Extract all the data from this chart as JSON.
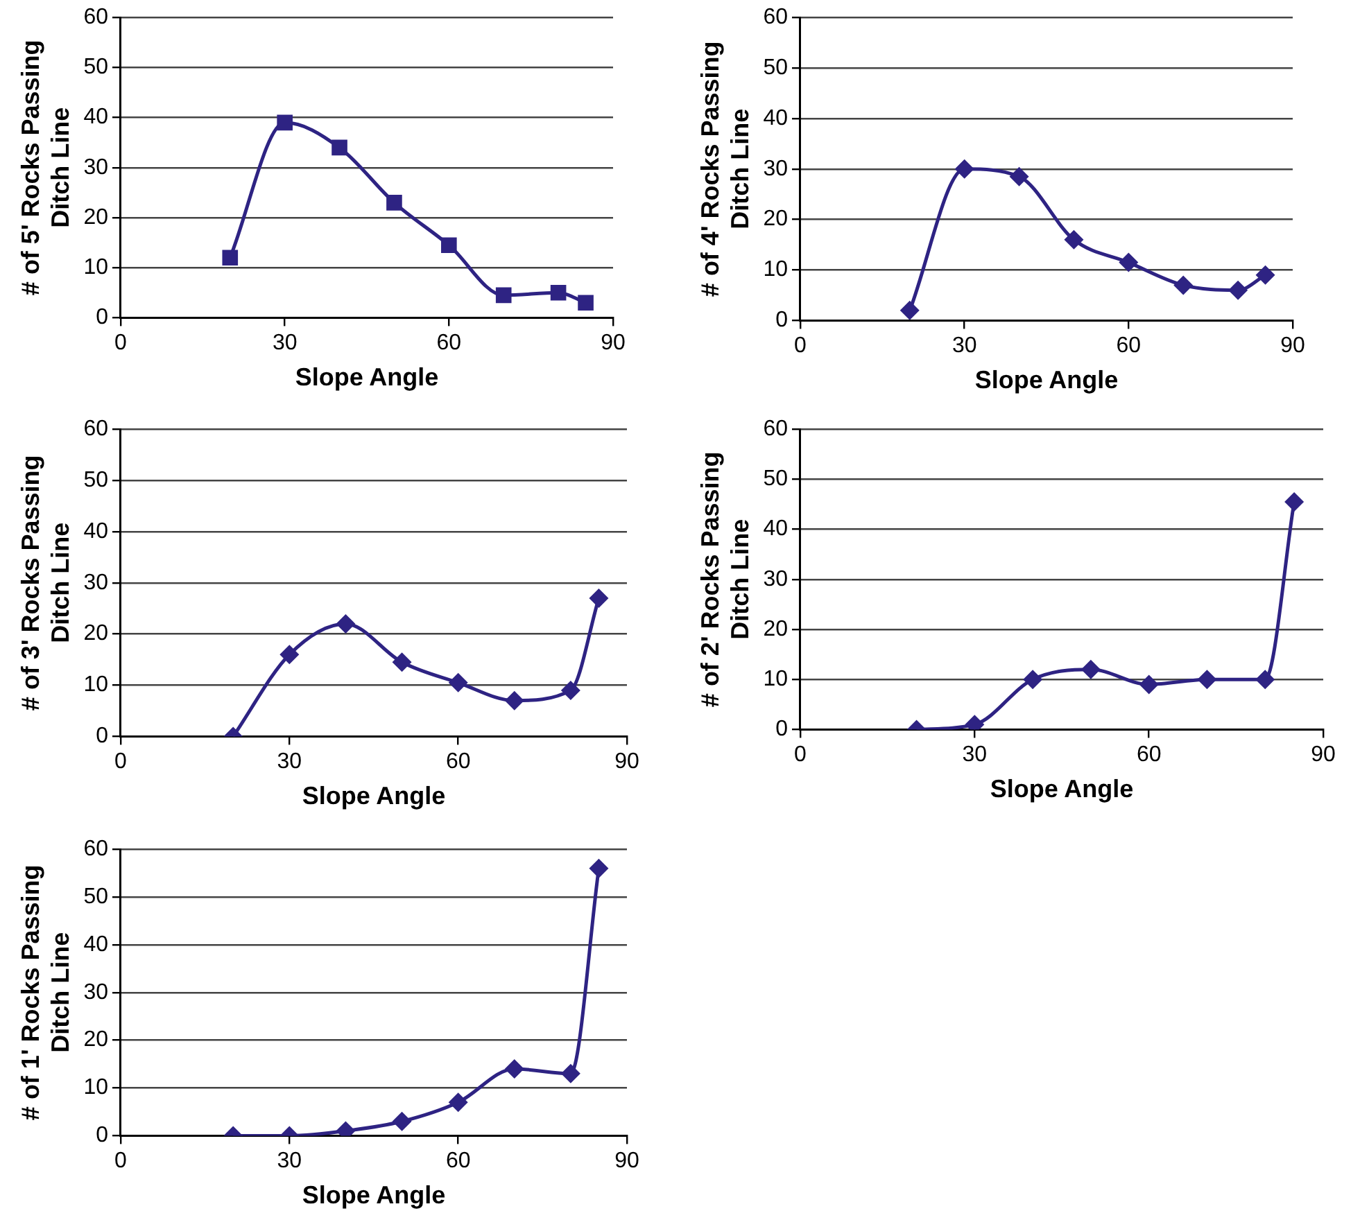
{
  "chart_data": [
    {
      "type": "line",
      "xlabel": "Slope Angle",
      "ylabel": "# of 5' Rocks Passing\nDitch Line",
      "x": [
        20,
        30,
        40,
        50,
        60,
        70,
        80,
        85
      ],
      "series": [
        {
          "color": "#2e2383",
          "values": [
            12,
            39,
            34,
            23,
            14.5,
            4.5,
            5,
            3
          ]
        }
      ],
      "xlim": [
        0,
        90
      ],
      "xticks": [
        0,
        30,
        60,
        90
      ],
      "ylim": [
        0,
        60
      ],
      "yticks": [
        0,
        10,
        20,
        30,
        40,
        50,
        60
      ],
      "grid": "y",
      "legend": false,
      "marker": "square",
      "line_style": "solid"
    },
    {
      "type": "line",
      "xlabel": "Slope Angle",
      "ylabel": "# of 4' Rocks Passing\nDitch Line",
      "x": [
        20,
        30,
        40,
        50,
        60,
        70,
        80,
        85
      ],
      "series": [
        {
          "color": "#2e2383",
          "values": [
            2,
            30,
            28.5,
            16,
            11.5,
            7,
            6,
            9
          ]
        }
      ],
      "xlim": [
        0,
        90
      ],
      "xticks": [
        0,
        30,
        60,
        90
      ],
      "ylim": [
        0,
        60
      ],
      "yticks": [
        0,
        10,
        20,
        30,
        40,
        50,
        60
      ],
      "grid": "y",
      "legend": false,
      "marker": "diamond",
      "line_style": "solid"
    },
    {
      "type": "line",
      "xlabel": "Slope Angle",
      "ylabel": "# of 3' Rocks Passing\nDitch Line",
      "x": [
        20,
        30,
        40,
        50,
        60,
        70,
        80,
        85
      ],
      "series": [
        {
          "color": "#2e2383",
          "values": [
            0,
            16,
            22,
            14.5,
            10.5,
            7,
            9,
            27
          ]
        }
      ],
      "xlim": [
        0,
        90
      ],
      "xticks": [
        0,
        30,
        60,
        90
      ],
      "ylim": [
        0,
        60
      ],
      "yticks": [
        0,
        10,
        20,
        30,
        40,
        50,
        60
      ],
      "grid": "y",
      "legend": false,
      "marker": "diamond",
      "line_style": "solid"
    },
    {
      "type": "line",
      "xlabel": "Slope Angle",
      "ylabel": "# of 2' Rocks Passing\nDitch Line",
      "x": [
        20,
        30,
        40,
        50,
        60,
        70,
        80,
        85
      ],
      "series": [
        {
          "color": "#2e2383",
          "values": [
            0,
            1,
            10,
            12,
            9,
            10,
            10,
            45.5
          ]
        }
      ],
      "xlim": [
        0,
        90
      ],
      "xticks": [
        0,
        30,
        60,
        90
      ],
      "ylim": [
        0,
        60
      ],
      "yticks": [
        0,
        10,
        20,
        30,
        40,
        50,
        60
      ],
      "grid": "y",
      "legend": false,
      "marker": "diamond",
      "line_style": "solid"
    },
    {
      "type": "line",
      "xlabel": "Slope Angle",
      "ylabel": "# of 1' Rocks Passing\nDitch Line",
      "x": [
        20,
        30,
        40,
        50,
        60,
        70,
        80,
        85
      ],
      "series": [
        {
          "color": "#2e2383",
          "values": [
            0,
            0,
            1,
            3,
            7,
            14,
            13,
            56
          ]
        }
      ],
      "xlim": [
        0,
        90
      ],
      "xticks": [
        0,
        30,
        60,
        90
      ],
      "ylim": [
        0,
        60
      ],
      "yticks": [
        0,
        10,
        20,
        30,
        40,
        50,
        60
      ],
      "grid": "y",
      "legend": false,
      "marker": "diamond",
      "line_style": "solid"
    }
  ]
}
